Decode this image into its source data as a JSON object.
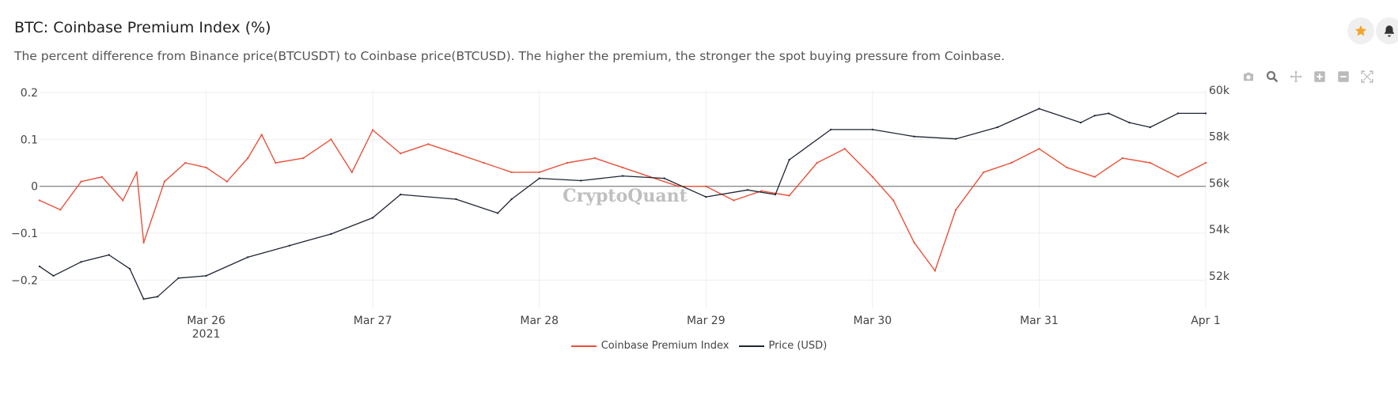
{
  "header": {
    "title": "BTC: Coinbase Premium Index (%)",
    "description": "The percent difference from Binance price(BTCUSDT) to Coinbase price(BTCUSD). The higher the premium, the stronger the spot buying pressure from Coinbase."
  },
  "actions": {
    "favorite_icon": "star-icon",
    "alert_icon": "bell-icon"
  },
  "modebar": [
    "camera-icon",
    "zoom-icon",
    "pan-icon",
    "zoom-in-icon",
    "zoom-out-icon",
    "autoscale-icon"
  ],
  "watermark": "CryptoQuant",
  "colors": {
    "premium": "#e8523a",
    "price": "#1e2533",
    "zero_line": "#777777",
    "grid": "#eeeeee"
  },
  "chart_data": {
    "type": "line",
    "x_tick_labels": [
      "Mar 26",
      "Mar 27",
      "Mar 28",
      "Mar 29",
      "Mar 30",
      "Mar 31",
      "Apr 1"
    ],
    "x_year_label": "2021",
    "xlim": [
      "2021-03-25",
      "2021-04-01"
    ],
    "y_left": {
      "ticks": [
        0.2,
        0.1,
        0,
        -0.1,
        -0.2
      ],
      "tick_labels": [
        "0.2",
        "0.1",
        "0",
        "−0.1",
        "−0.2"
      ],
      "range": [
        -0.26,
        0.205
      ]
    },
    "y_right": {
      "ticks": [
        60000,
        58000,
        56000,
        54000,
        52000
      ],
      "tick_labels": [
        "60k",
        "58k",
        "56k",
        "54k",
        "52k"
      ],
      "range": [
        50600,
        60000
      ]
    },
    "series": [
      {
        "name": "Coinbase Premium Index",
        "axis": "left",
        "x": [
          "2021-03-25 00:00",
          "2021-03-25 03:00",
          "2021-03-25 06:00",
          "2021-03-25 09:00",
          "2021-03-25 12:00",
          "2021-03-25 14:00",
          "2021-03-25 15:00",
          "2021-03-25 18:00",
          "2021-03-25 21:00",
          "2021-03-26 00:00",
          "2021-03-26 03:00",
          "2021-03-26 06:00",
          "2021-03-26 08:00",
          "2021-03-26 10:00",
          "2021-03-26 14:00",
          "2021-03-26 18:00",
          "2021-03-26 21:00",
          "2021-03-27 00:00",
          "2021-03-27 04:00",
          "2021-03-27 08:00",
          "2021-03-27 12:00",
          "2021-03-27 16:00",
          "2021-03-27 20:00",
          "2021-03-28 00:00",
          "2021-03-28 04:00",
          "2021-03-28 08:00",
          "2021-03-28 12:00",
          "2021-03-28 16:00",
          "2021-03-28 20:00",
          "2021-03-29 00:00",
          "2021-03-29 04:00",
          "2021-03-29 08:00",
          "2021-03-29 12:00",
          "2021-03-29 16:00",
          "2021-03-29 20:00",
          "2021-03-30 00:00",
          "2021-03-30 03:00",
          "2021-03-30 06:00",
          "2021-03-30 09:00",
          "2021-03-30 12:00",
          "2021-03-30 16:00",
          "2021-03-30 20:00",
          "2021-03-31 00:00",
          "2021-03-31 04:00",
          "2021-03-31 08:00",
          "2021-03-31 12:00",
          "2021-03-31 16:00",
          "2021-03-31 20:00",
          "2021-04-01 00:00"
        ],
        "values": [
          -0.03,
          -0.05,
          0.01,
          0.02,
          -0.03,
          0.03,
          -0.12,
          0.01,
          0.05,
          0.04,
          0.01,
          0.06,
          0.11,
          0.05,
          0.06,
          0.1,
          0.03,
          0.12,
          0.07,
          0.09,
          0.07,
          0.05,
          0.03,
          0.03,
          0.05,
          0.06,
          0.04,
          0.02,
          0.0,
          0.0,
          -0.03,
          -0.01,
          -0.02,
          0.05,
          0.08,
          0.02,
          -0.03,
          -0.12,
          -0.18,
          -0.05,
          0.03,
          0.05,
          0.08,
          0.04,
          0.02,
          0.06,
          0.05,
          0.02,
          0.05
        ]
      },
      {
        "name": "Price (USD)",
        "axis": "right",
        "x": [
          "2021-03-25 00:00",
          "2021-03-25 02:00",
          "2021-03-25 06:00",
          "2021-03-25 10:00",
          "2021-03-25 13:00",
          "2021-03-25 15:00",
          "2021-03-25 17:00",
          "2021-03-25 20:00",
          "2021-03-26 00:00",
          "2021-03-26 06:00",
          "2021-03-26 12:00",
          "2021-03-26 18:00",
          "2021-03-27 00:00",
          "2021-03-27 04:00",
          "2021-03-27 12:00",
          "2021-03-27 18:00",
          "2021-03-27 20:00",
          "2021-03-28 00:00",
          "2021-03-28 06:00",
          "2021-03-28 12:00",
          "2021-03-28 18:00",
          "2021-03-29 00:00",
          "2021-03-29 06:00",
          "2021-03-29 10:00",
          "2021-03-29 12:00",
          "2021-03-29 18:00",
          "2021-03-30 00:00",
          "2021-03-30 06:00",
          "2021-03-30 12:00",
          "2021-03-30 18:00",
          "2021-03-31 00:00",
          "2021-03-31 06:00",
          "2021-03-31 08:00",
          "2021-03-31 10:00",
          "2021-03-31 13:00",
          "2021-03-31 16:00",
          "2021-03-31 20:00",
          "2021-04-01 00:00"
        ],
        "values": [
          52400,
          52000,
          52600,
          52900,
          52300,
          51000,
          51100,
          51900,
          52000,
          52800,
          53300,
          53800,
          54500,
          55500,
          55300,
          54700,
          55300,
          56200,
          56100,
          56300,
          56200,
          55400,
          55700,
          55500,
          57000,
          58300,
          58300,
          58000,
          57900,
          58400,
          59200,
          58600,
          58900,
          59000,
          58600,
          58400,
          59000,
          59000
        ]
      }
    ],
    "legend_position": "bottom-center",
    "grid": true
  }
}
